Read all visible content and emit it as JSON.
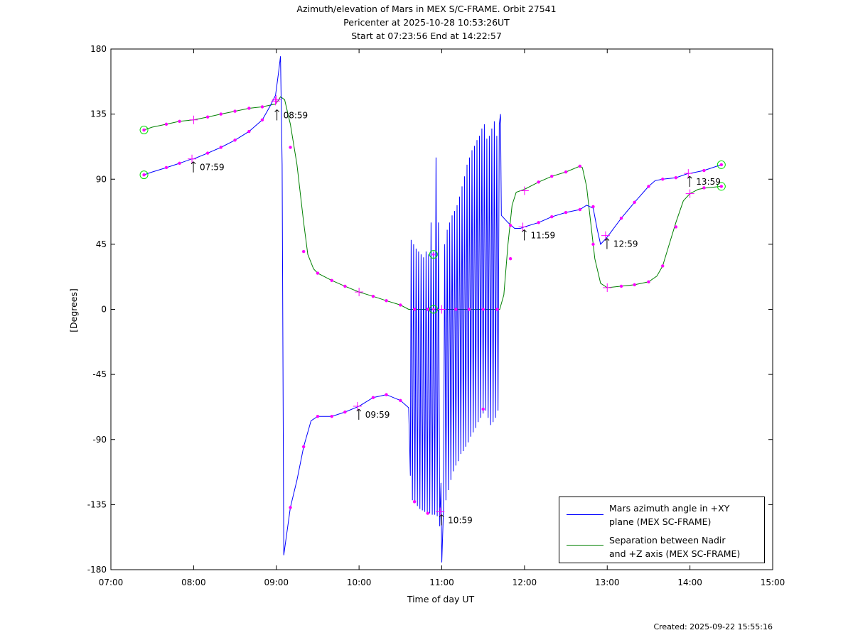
{
  "title": {
    "line1": "Azimuth/elevation of Mars in MEX S/C-FRAME.  Orbit 27541",
    "line2": "Pericenter at 2025-10-28 10:53:26UT",
    "line3": "Start at 07:23:56 End at 14:22:57"
  },
  "footer": {
    "created": "Created: 2025-09-22 15:55:16"
  },
  "colors": {
    "azimuth": "#0000ff",
    "separation": "#008000",
    "markers": "#ff00ff",
    "endpoints": "#00dd00"
  },
  "chart_data": {
    "type": "line",
    "title": "Azimuth/elevation of Mars in MEX S/C-FRAME.  Orbit 27541",
    "xlabel": "Time of day UT",
    "ylabel": "[Degrees]",
    "xlim": [
      7,
      15
    ],
    "ylim": [
      -180,
      180
    ],
    "x_ticks": [
      "07:00",
      "08:00",
      "09:00",
      "10:00",
      "11:00",
      "12:00",
      "13:00",
      "14:00",
      "15:00"
    ],
    "y_ticks": [
      "180",
      "135",
      "90",
      "45",
      "0",
      "-45",
      "-90",
      "-135",
      "-180"
    ],
    "legend": [
      {
        "line1": "Mars azimuth angle in +XY",
        "line2": "plane (MEX SC-FRAME)",
        "color": "#0000ff"
      },
      {
        "line1": "Separation between Nadir",
        "line2": "and +Z axis (MEX SC-FRAME)",
        "color": "#008000"
      }
    ],
    "series": [
      {
        "name": "Mars azimuth angle in +XY plane (MEX SC-FRAME)",
        "color": "#0000ff",
        "points": [
          [
            7.4,
            93
          ],
          [
            7.5,
            95
          ],
          [
            7.67,
            98
          ],
          [
            7.83,
            101
          ],
          [
            7.98,
            104
          ],
          [
            8.0,
            104
          ],
          [
            8.17,
            108
          ],
          [
            8.33,
            112
          ],
          [
            8.5,
            117
          ],
          [
            8.67,
            123
          ],
          [
            8.83,
            131
          ],
          [
            8.92,
            140
          ],
          [
            8.99,
            148
          ],
          [
            9.03,
            165
          ],
          [
            9.05,
            175
          ],
          [
            9.07,
            100
          ],
          [
            9.08,
            -40
          ],
          [
            9.09,
            -170
          ],
          [
            9.17,
            -137
          ],
          [
            9.25,
            -118
          ],
          [
            9.33,
            -95
          ],
          [
            9.42,
            -77
          ],
          [
            9.5,
            -74
          ],
          [
            9.67,
            -74
          ],
          [
            9.83,
            -71
          ],
          [
            10.0,
            -67
          ],
          [
            10.17,
            -61
          ],
          [
            10.33,
            -59
          ],
          [
            10.5,
            -63
          ],
          [
            10.6,
            -68
          ],
          [
            10.62,
            -115
          ],
          [
            10.63,
            48
          ],
          [
            10.645,
            -132
          ],
          [
            10.66,
            45
          ],
          [
            10.675,
            -134
          ],
          [
            10.69,
            42
          ],
          [
            10.705,
            -136
          ],
          [
            10.72,
            40
          ],
          [
            10.735,
            -138
          ],
          [
            10.75,
            38
          ],
          [
            10.765,
            -139
          ],
          [
            10.78,
            36
          ],
          [
            10.795,
            -140
          ],
          [
            10.81,
            40
          ],
          [
            10.825,
            -141
          ],
          [
            10.84,
            38
          ],
          [
            10.855,
            -141
          ],
          [
            10.87,
            60
          ],
          [
            10.885,
            -142
          ],
          [
            10.9,
            40
          ],
          [
            10.915,
            -142
          ],
          [
            10.93,
            105
          ],
          [
            10.945,
            -143
          ],
          [
            10.96,
            60
          ],
          [
            10.975,
            -150
          ],
          [
            10.99,
            -120
          ],
          [
            11.0,
            -175
          ],
          [
            11.02,
            -140
          ],
          [
            11.035,
            45
          ],
          [
            11.05,
            -132
          ],
          [
            11.065,
            55
          ],
          [
            11.08,
            -125
          ],
          [
            11.095,
            60
          ],
          [
            11.11,
            -118
          ],
          [
            11.125,
            65
          ],
          [
            11.14,
            -112
          ],
          [
            11.155,
            68
          ],
          [
            11.17,
            -108
          ],
          [
            11.185,
            72
          ],
          [
            11.2,
            -105
          ],
          [
            11.215,
            78
          ],
          [
            11.23,
            -100
          ],
          [
            11.245,
            85
          ],
          [
            11.26,
            -98
          ],
          [
            11.275,
            92
          ],
          [
            11.29,
            -95
          ],
          [
            11.305,
            100
          ],
          [
            11.32,
            -92
          ],
          [
            11.335,
            105
          ],
          [
            11.35,
            -88
          ],
          [
            11.365,
            110
          ],
          [
            11.38,
            -85
          ],
          [
            11.395,
            113
          ],
          [
            11.41,
            -82
          ],
          [
            11.425,
            117
          ],
          [
            11.44,
            -78
          ],
          [
            11.455,
            120
          ],
          [
            11.47,
            -75
          ],
          [
            11.485,
            125
          ],
          [
            11.5,
            -72
          ],
          [
            11.515,
            128
          ],
          [
            11.53,
            -70
          ],
          [
            11.545,
            118
          ],
          [
            11.56,
            -75
          ],
          [
            11.575,
            120
          ],
          [
            11.59,
            -80
          ],
          [
            11.605,
            125
          ],
          [
            11.62,
            -78
          ],
          [
            11.635,
            130
          ],
          [
            11.65,
            -75
          ],
          [
            11.665,
            120
          ],
          [
            11.68,
            -70
          ],
          [
            11.695,
            128
          ],
          [
            11.71,
            135
          ],
          [
            11.72,
            65
          ],
          [
            11.8,
            60
          ],
          [
            11.88,
            56
          ],
          [
            11.95,
            56
          ],
          [
            12.0,
            57
          ],
          [
            12.17,
            60
          ],
          [
            12.33,
            64
          ],
          [
            12.5,
            67
          ],
          [
            12.67,
            69
          ],
          [
            12.75,
            72
          ],
          [
            12.83,
            70
          ],
          [
            12.88,
            55
          ],
          [
            12.92,
            45
          ],
          [
            13.0,
            50
          ],
          [
            13.17,
            63
          ],
          [
            13.33,
            74
          ],
          [
            13.5,
            85
          ],
          [
            13.58,
            89
          ],
          [
            13.67,
            90
          ],
          [
            13.83,
            91
          ],
          [
            13.98,
            94
          ],
          [
            14.0,
            94
          ],
          [
            14.17,
            96
          ],
          [
            14.38,
            100
          ]
        ]
      },
      {
        "name": "Separation between Nadir and +Z axis (MEX SC-FRAME)",
        "color": "#008000",
        "points": [
          [
            7.4,
            124
          ],
          [
            7.5,
            126
          ],
          [
            7.67,
            128
          ],
          [
            7.83,
            130
          ],
          [
            8.0,
            131
          ],
          [
            8.17,
            133
          ],
          [
            8.33,
            135
          ],
          [
            8.5,
            137
          ],
          [
            8.67,
            139
          ],
          [
            8.83,
            140
          ],
          [
            8.99,
            142
          ],
          [
            9.03,
            145
          ],
          [
            9.05,
            147
          ],
          [
            9.1,
            145
          ],
          [
            9.17,
            128
          ],
          [
            9.25,
            100
          ],
          [
            9.33,
            60
          ],
          [
            9.38,
            38
          ],
          [
            9.45,
            28
          ],
          [
            9.5,
            25
          ],
          [
            9.67,
            20
          ],
          [
            9.83,
            16
          ],
          [
            10.0,
            12
          ],
          [
            10.17,
            9
          ],
          [
            10.33,
            6
          ],
          [
            10.5,
            3
          ],
          [
            10.6,
            0
          ],
          [
            11.0,
            0
          ],
          [
            11.5,
            0
          ],
          [
            11.7,
            0
          ],
          [
            11.75,
            10
          ],
          [
            11.8,
            45
          ],
          [
            11.85,
            72
          ],
          [
            11.9,
            81
          ],
          [
            12.0,
            83
          ],
          [
            12.17,
            88
          ],
          [
            12.33,
            92
          ],
          [
            12.5,
            95
          ],
          [
            12.67,
            99
          ],
          [
            12.7,
            98
          ],
          [
            12.75,
            85
          ],
          [
            12.8,
            60
          ],
          [
            12.85,
            35
          ],
          [
            12.92,
            18
          ],
          [
            13.0,
            15
          ],
          [
            13.17,
            16
          ],
          [
            13.33,
            17
          ],
          [
            13.5,
            19
          ],
          [
            13.6,
            23
          ],
          [
            13.67,
            30
          ],
          [
            13.75,
            45
          ],
          [
            13.83,
            60
          ],
          [
            13.92,
            75
          ],
          [
            14.0,
            80
          ],
          [
            14.1,
            83
          ],
          [
            14.2,
            84
          ],
          [
            14.38,
            85
          ]
        ]
      }
    ],
    "time_markers": [
      {
        "x": 7.98,
        "y": 104,
        "label": "07:59"
      },
      {
        "x": 8.99,
        "y": 140,
        "label": "08:59"
      },
      {
        "x": 9.98,
        "y": -67,
        "label": "09:59"
      },
      {
        "x": 10.98,
        "y": -140,
        "label": "10:59"
      },
      {
        "x": 11.98,
        "y": 57,
        "label": "11:59"
      },
      {
        "x": 12.98,
        "y": 51,
        "label": "12:59"
      },
      {
        "x": 13.98,
        "y": 94,
        "label": "13:59"
      }
    ],
    "dots": [
      [
        7.4,
        93
      ],
      [
        7.67,
        98
      ],
      [
        7.83,
        101
      ],
      [
        8.17,
        108
      ],
      [
        8.33,
        112
      ],
      [
        8.5,
        117
      ],
      [
        8.67,
        123
      ],
      [
        8.83,
        131
      ],
      [
        9.17,
        -137
      ],
      [
        9.33,
        -95
      ],
      [
        9.5,
        -74
      ],
      [
        9.67,
        -74
      ],
      [
        9.83,
        -71
      ],
      [
        10.17,
        -61
      ],
      [
        10.33,
        -59
      ],
      [
        10.5,
        -63
      ],
      [
        10.67,
        -133
      ],
      [
        10.83,
        -141
      ],
      [
        11.5,
        -69
      ],
      [
        11.83,
        58
      ],
      [
        12.17,
        60
      ],
      [
        12.33,
        64
      ],
      [
        12.5,
        67
      ],
      [
        12.67,
        69
      ],
      [
        12.83,
        71
      ],
      [
        13.17,
        63
      ],
      [
        13.33,
        74
      ],
      [
        13.5,
        85
      ],
      [
        13.67,
        90
      ],
      [
        13.83,
        91
      ],
      [
        14.17,
        96
      ],
      [
        14.38,
        100
      ],
      [
        7.4,
        124
      ],
      [
        7.67,
        128
      ],
      [
        7.83,
        130
      ],
      [
        8.17,
        133
      ],
      [
        8.33,
        135
      ],
      [
        8.5,
        137
      ],
      [
        8.67,
        139
      ],
      [
        8.83,
        140
      ],
      [
        9.17,
        112
      ],
      [
        9.33,
        40
      ],
      [
        9.5,
        25
      ],
      [
        9.67,
        20
      ],
      [
        9.83,
        16
      ],
      [
        10.17,
        9
      ],
      [
        10.33,
        6
      ],
      [
        10.5,
        3
      ],
      [
        10.67,
        0
      ],
      [
        10.83,
        0
      ],
      [
        11.17,
        0
      ],
      [
        11.33,
        0
      ],
      [
        11.5,
        0
      ],
      [
        11.67,
        0
      ],
      [
        11.83,
        35
      ],
      [
        12.17,
        88
      ],
      [
        12.33,
        92
      ],
      [
        12.5,
        95
      ],
      [
        12.67,
        99
      ],
      [
        12.83,
        45
      ],
      [
        13.17,
        16
      ],
      [
        13.33,
        17
      ],
      [
        13.5,
        19
      ],
      [
        13.67,
        30
      ],
      [
        13.83,
        57
      ],
      [
        14.17,
        84
      ],
      [
        14.38,
        85
      ]
    ],
    "crosses": [
      [
        7.98,
        104
      ],
      [
        8.99,
        144
      ],
      [
        9.98,
        -67
      ],
      [
        10.98,
        -140
      ],
      [
        11.98,
        57
      ],
      [
        12.98,
        51
      ],
      [
        13.98,
        94
      ],
      [
        8.0,
        131
      ],
      [
        9.0,
        145
      ],
      [
        10.0,
        12
      ],
      [
        11.0,
        0
      ],
      [
        12.0,
        82
      ],
      [
        13.0,
        15
      ],
      [
        14.0,
        80
      ]
    ],
    "endpoint_circles": [
      [
        7.4,
        93
      ],
      [
        7.4,
        124
      ],
      [
        14.38,
        100
      ],
      [
        14.38,
        85
      ],
      [
        10.9,
        38
      ],
      [
        10.9,
        0
      ]
    ]
  }
}
